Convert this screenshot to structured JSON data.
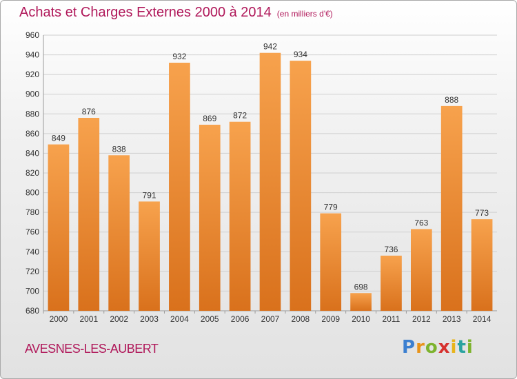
{
  "header": {
    "title": "Achats et Charges Externes 2000 à 2014",
    "subtitle": "(en milliers d'€)"
  },
  "footer": {
    "commune": "AVESNES-LES-AUBERT",
    "logo_letters": [
      "P",
      "r",
      "o",
      "x",
      "i",
      "t",
      "i"
    ],
    "logo_colors": [
      "#3b7fd0",
      "#e8931a",
      "#7db32e",
      "#d6312e",
      "#e8b41a",
      "#2aa3a0",
      "#7db32e"
    ]
  },
  "chart_data": {
    "type": "bar",
    "title": "Achats et Charges Externes 2000 à 2014",
    "subtitle": "(en milliers d'€)",
    "categories": [
      "2000",
      "2001",
      "2002",
      "2003",
      "2004",
      "2005",
      "2006",
      "2007",
      "2008",
      "2009",
      "2010",
      "2011",
      "2012",
      "2013",
      "2014"
    ],
    "values": [
      849,
      876,
      838,
      791,
      932,
      869,
      872,
      942,
      934,
      779,
      698,
      736,
      763,
      888,
      773
    ],
    "ylim": [
      680,
      960
    ],
    "yticks": [
      680,
      700,
      720,
      740,
      760,
      780,
      800,
      820,
      840,
      860,
      880,
      900,
      920,
      940,
      960
    ],
    "grid": true,
    "bar_color_top": "#f7a24d",
    "bar_color_bottom": "#d9711c"
  }
}
